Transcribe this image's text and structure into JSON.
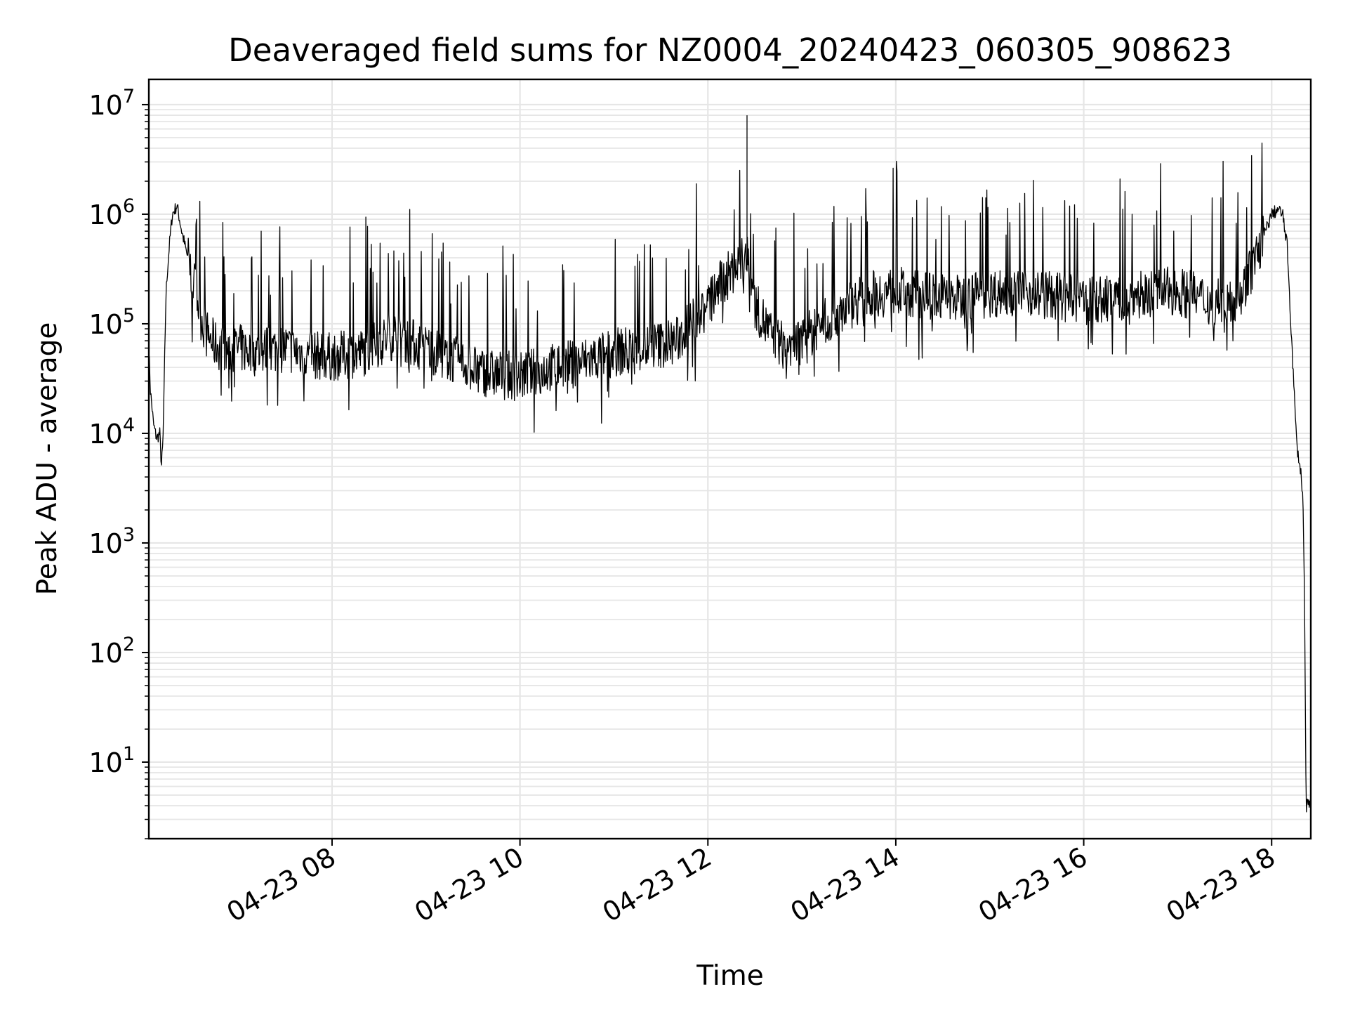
{
  "chart_data": {
    "type": "line",
    "title": "Deaveraged field sums for NZ0004_20240423_060305_908623",
    "xlabel": "Time",
    "ylabel": "Peak ADU - average",
    "x_range": [
      "2024-04-23 06:03",
      "2024-04-23 18:25"
    ],
    "xticks": [
      {
        "label": "04-23 08",
        "time": "2024-04-23 08:00"
      },
      {
        "label": "04-23 10",
        "time": "2024-04-23 10:00"
      },
      {
        "label": "04-23 12",
        "time": "2024-04-23 12:00"
      },
      {
        "label": "04-23 14",
        "time": "2024-04-23 14:00"
      },
      {
        "label": "04-23 16",
        "time": "2024-04-23 16:00"
      },
      {
        "label": "04-23 18",
        "time": "2024-04-23 18:00"
      }
    ],
    "y_scale": "log",
    "ylim": [
      2,
      17000000
    ],
    "yticks": [
      {
        "base": "10",
        "exp": "1",
        "value": 10
      },
      {
        "base": "10",
        "exp": "2",
        "value": 100
      },
      {
        "base": "10",
        "exp": "3",
        "value": 1000
      },
      {
        "base": "10",
        "exp": "4",
        "value": 10000
      },
      {
        "base": "10",
        "exp": "5",
        "value": 100000
      },
      {
        "base": "10",
        "exp": "6",
        "value": 1000000
      },
      {
        "base": "10",
        "exp": "7",
        "value": 10000000
      }
    ],
    "grid": true,
    "line_color": "#000000",
    "series": [
      {
        "x": [
          "2024-04-23 06:03",
          "2024-04-23 06:04",
          "2024-04-23 06:06",
          "2024-04-23 06:08",
          "2024-04-23 06:10",
          "2024-04-23 06:11",
          "2024-04-23 06:12",
          "2024-04-23 06:14",
          "2024-04-23 06:16",
          "2024-04-23 06:18",
          "2024-04-23 06:21",
          "2024-04-23 06:24",
          "2024-04-23 06:27",
          "2024-04-23 06:30",
          "2024-04-23 06:33",
          "2024-04-23 06:36",
          "2024-04-23 06:40",
          "2024-04-23 06:45",
          "2024-04-23 06:50",
          "2024-04-23 06:55",
          "2024-04-23 07:00",
          "2024-04-23 07:10",
          "2024-04-23 07:20",
          "2024-04-23 07:30",
          "2024-04-23 07:45",
          "2024-04-23 08:00",
          "2024-04-23 08:20",
          "2024-04-23 08:40",
          "2024-04-23 09:00",
          "2024-04-23 09:20",
          "2024-04-23 09:40",
          "2024-04-23 10:00",
          "2024-04-23 10:20",
          "2024-04-23 10:40",
          "2024-04-23 11:00",
          "2024-04-23 11:20",
          "2024-04-23 11:40",
          "2024-04-23 12:00",
          "2024-04-23 12:10",
          "2024-04-23 12:20",
          "2024-04-23 12:25",
          "2024-04-23 12:30",
          "2024-04-23 12:40",
          "2024-04-23 12:50",
          "2024-04-23 13:00",
          "2024-04-23 13:20",
          "2024-04-23 13:40",
          "2024-04-23 14:00",
          "2024-04-23 14:20",
          "2024-04-23 14:40",
          "2024-04-23 15:00",
          "2024-04-23 15:20",
          "2024-04-23 15:40",
          "2024-04-23 16:00",
          "2024-04-23 16:20",
          "2024-04-23 16:40",
          "2024-04-23 17:00",
          "2024-04-23 17:20",
          "2024-04-23 17:40",
          "2024-04-23 17:50",
          "2024-04-23 18:00",
          "2024-04-23 18:04",
          "2024-04-23 18:07",
          "2024-04-23 18:10",
          "2024-04-23 18:13",
          "2024-04-23 18:16",
          "2024-04-23 18:19",
          "2024-04-23 18:20",
          "2024-04-23 18:21",
          "2024-04-23 18:22",
          "2024-04-23 18:25"
        ],
        "y": [
          60000,
          25000,
          12000,
          9000,
          10000,
          5000,
          8000,
          200000,
          500000,
          1000000,
          1200000,
          700000,
          450000,
          300000,
          200000,
          120000,
          80000,
          65000,
          60000,
          55000,
          60000,
          55000,
          58000,
          60000,
          52000,
          50000,
          55000,
          80000,
          60000,
          45000,
          35000,
          33000,
          40000,
          45000,
          55000,
          60000,
          70000,
          150000,
          250000,
          350000,
          400000,
          150000,
          80000,
          60000,
          70000,
          120000,
          180000,
          200000,
          180000,
          170000,
          190000,
          200000,
          180000,
          160000,
          170000,
          190000,
          200000,
          160000,
          180000,
          400000,
          1000000,
          1100000,
          1000000,
          500000,
          60000,
          8000,
          4000,
          2500,
          300,
          4,
          4
        ]
      }
    ]
  }
}
